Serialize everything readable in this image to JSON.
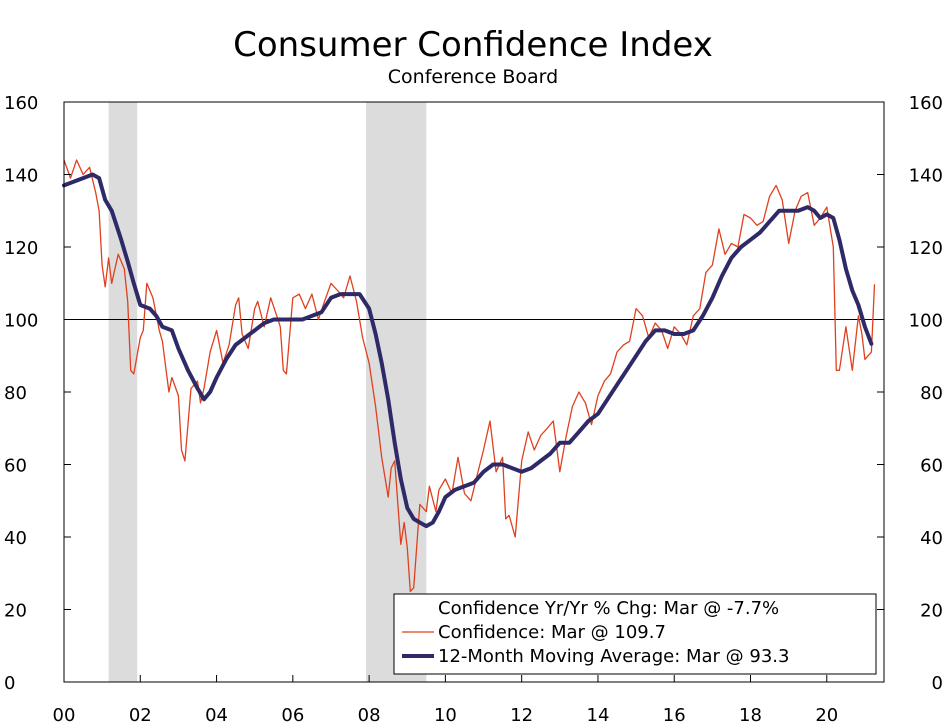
{
  "chart_data": {
    "type": "line",
    "title": "Consumer Confidence Index",
    "subtitle": "Conference Board",
    "xlim": [
      2000,
      2021.5
    ],
    "ylim": [
      0,
      160
    ],
    "y_ticks": [
      0,
      20,
      40,
      60,
      80,
      100,
      120,
      140,
      160
    ],
    "y_tick_labels": [
      "0",
      "20",
      "40",
      "60",
      "80",
      "100",
      "120",
      "140",
      "160"
    ],
    "x_ticks": [
      2000,
      2002,
      2004,
      2006,
      2008,
      2010,
      2012,
      2014,
      2016,
      2018,
      2020
    ],
    "x_tick_labels": [
      "00",
      "02",
      "04",
      "06",
      "08",
      "10",
      "12",
      "14",
      "16",
      "18",
      "20"
    ],
    "reference_line": 100,
    "recessions": [
      [
        2001.17,
        2001.92
      ],
      [
        2007.92,
        2009.5
      ]
    ],
    "colors": {
      "confidence": "#e0401e",
      "moving_average": "#2e2a68",
      "recession": "#dcdcdc"
    },
    "legend": [
      {
        "key": "yoy",
        "label": "Confidence Yr/Yr % Chg: Mar @ -7.7%"
      },
      {
        "key": "confidence",
        "label": "Confidence: Mar @ 109.7"
      },
      {
        "key": "moving_average",
        "label": "12-Month Moving Average: Mar @ 93.3"
      }
    ],
    "series": [
      {
        "name": "Confidence",
        "points": [
          [
            2000.0,
            144
          ],
          [
            2000.17,
            139
          ],
          [
            2000.33,
            144
          ],
          [
            2000.5,
            140
          ],
          [
            2000.67,
            142
          ],
          [
            2000.83,
            135
          ],
          [
            2000.92,
            130
          ],
          [
            2001.0,
            115
          ],
          [
            2001.08,
            109
          ],
          [
            2001.17,
            117
          ],
          [
            2001.25,
            110
          ],
          [
            2001.42,
            118
          ],
          [
            2001.58,
            114
          ],
          [
            2001.67,
            105
          ],
          [
            2001.75,
            86
          ],
          [
            2001.83,
            85
          ],
          [
            2002.0,
            95
          ],
          [
            2002.08,
            97
          ],
          [
            2002.17,
            110
          ],
          [
            2002.33,
            106
          ],
          [
            2002.5,
            97
          ],
          [
            2002.58,
            94
          ],
          [
            2002.75,
            80
          ],
          [
            2002.83,
            84
          ],
          [
            2003.0,
            79
          ],
          [
            2003.08,
            64
          ],
          [
            2003.17,
            61
          ],
          [
            2003.33,
            81
          ],
          [
            2003.5,
            83
          ],
          [
            2003.58,
            77
          ],
          [
            2003.67,
            81
          ],
          [
            2003.83,
            91
          ],
          [
            2004.0,
            97
          ],
          [
            2004.17,
            88
          ],
          [
            2004.33,
            93
          ],
          [
            2004.5,
            104
          ],
          [
            2004.58,
            106
          ],
          [
            2004.67,
            96
          ],
          [
            2004.83,
            92
          ],
          [
            2005.0,
            103
          ],
          [
            2005.08,
            105
          ],
          [
            2005.25,
            98
          ],
          [
            2005.42,
            106
          ],
          [
            2005.58,
            101
          ],
          [
            2005.67,
            98
          ],
          [
            2005.75,
            86
          ],
          [
            2005.83,
            85
          ],
          [
            2006.0,
            106
          ],
          [
            2006.17,
            107
          ],
          [
            2006.33,
            103
          ],
          [
            2006.5,
            107
          ],
          [
            2006.67,
            100
          ],
          [
            2006.83,
            105
          ],
          [
            2007.0,
            110
          ],
          [
            2007.17,
            108
          ],
          [
            2007.33,
            106
          ],
          [
            2007.5,
            112
          ],
          [
            2007.67,
            105
          ],
          [
            2007.83,
            95
          ],
          [
            2008.0,
            88
          ],
          [
            2008.17,
            76
          ],
          [
            2008.33,
            62
          ],
          [
            2008.5,
            51
          ],
          [
            2008.58,
            59
          ],
          [
            2008.67,
            61
          ],
          [
            2008.83,
            38
          ],
          [
            2008.92,
            44
          ],
          [
            2009.0,
            37
          ],
          [
            2009.08,
            25
          ],
          [
            2009.17,
            26
          ],
          [
            2009.33,
            49
          ],
          [
            2009.5,
            47
          ],
          [
            2009.58,
            54
          ],
          [
            2009.75,
            47
          ],
          [
            2009.83,
            53
          ],
          [
            2010.0,
            56
          ],
          [
            2010.17,
            52
          ],
          [
            2010.33,
            62
          ],
          [
            2010.5,
            52
          ],
          [
            2010.67,
            50
          ],
          [
            2010.83,
            57
          ],
          [
            2011.0,
            64
          ],
          [
            2011.17,
            72
          ],
          [
            2011.33,
            58
          ],
          [
            2011.5,
            62
          ],
          [
            2011.58,
            45
          ],
          [
            2011.67,
            46
          ],
          [
            2011.83,
            40
          ],
          [
            2012.0,
            61
          ],
          [
            2012.17,
            69
          ],
          [
            2012.33,
            64
          ],
          [
            2012.5,
            68
          ],
          [
            2012.67,
            70
          ],
          [
            2012.83,
            72
          ],
          [
            2013.0,
            58
          ],
          [
            2013.17,
            68
          ],
          [
            2013.33,
            76
          ],
          [
            2013.5,
            80
          ],
          [
            2013.67,
            77
          ],
          [
            2013.83,
            71
          ],
          [
            2014.0,
            79
          ],
          [
            2014.17,
            83
          ],
          [
            2014.33,
            85
          ],
          [
            2014.5,
            91
          ],
          [
            2014.67,
            93
          ],
          [
            2014.83,
            94
          ],
          [
            2015.0,
            103
          ],
          [
            2015.17,
            101
          ],
          [
            2015.33,
            95
          ],
          [
            2015.5,
            99
          ],
          [
            2015.67,
            97
          ],
          [
            2015.83,
            92
          ],
          [
            2016.0,
            98
          ],
          [
            2016.17,
            96
          ],
          [
            2016.33,
            93
          ],
          [
            2016.5,
            101
          ],
          [
            2016.67,
            103
          ],
          [
            2016.83,
            113
          ],
          [
            2017.0,
            115
          ],
          [
            2017.17,
            125
          ],
          [
            2017.33,
            118
          ],
          [
            2017.5,
            121
          ],
          [
            2017.67,
            120
          ],
          [
            2017.83,
            129
          ],
          [
            2018.0,
            128
          ],
          [
            2018.17,
            126
          ],
          [
            2018.33,
            127
          ],
          [
            2018.5,
            134
          ],
          [
            2018.67,
            137
          ],
          [
            2018.83,
            133
          ],
          [
            2019.0,
            121
          ],
          [
            2019.17,
            130
          ],
          [
            2019.33,
            134
          ],
          [
            2019.5,
            135
          ],
          [
            2019.67,
            126
          ],
          [
            2019.83,
            128
          ],
          [
            2020.0,
            131
          ],
          [
            2020.17,
            120
          ],
          [
            2020.25,
            86
          ],
          [
            2020.33,
            86
          ],
          [
            2020.5,
            98
          ],
          [
            2020.67,
            86
          ],
          [
            2020.83,
            101
          ],
          [
            2020.92,
            96
          ],
          [
            2021.0,
            89
          ],
          [
            2021.08,
            90
          ],
          [
            2021.17,
            91
          ],
          [
            2021.25,
            109.7
          ]
        ]
      },
      {
        "name": "12-Month Moving Average",
        "points": [
          [
            2000.0,
            137
          ],
          [
            2000.25,
            138
          ],
          [
            2000.5,
            139
          ],
          [
            2000.75,
            140
          ],
          [
            2000.92,
            139
          ],
          [
            2001.08,
            133
          ],
          [
            2001.25,
            130
          ],
          [
            2001.5,
            122
          ],
          [
            2001.67,
            116
          ],
          [
            2001.83,
            110
          ],
          [
            2002.0,
            104
          ],
          [
            2002.25,
            103
          ],
          [
            2002.42,
            101
          ],
          [
            2002.58,
            98
          ],
          [
            2002.83,
            97
          ],
          [
            2003.0,
            92
          ],
          [
            2003.25,
            86
          ],
          [
            2003.5,
            81
          ],
          [
            2003.67,
            78
          ],
          [
            2003.83,
            80
          ],
          [
            2004.0,
            84
          ],
          [
            2004.25,
            89
          ],
          [
            2004.5,
            93
          ],
          [
            2004.75,
            95
          ],
          [
            2005.0,
            97
          ],
          [
            2005.25,
            99
          ],
          [
            2005.5,
            100
          ],
          [
            2005.67,
            100
          ],
          [
            2005.83,
            100
          ],
          [
            2006.0,
            100
          ],
          [
            2006.25,
            100
          ],
          [
            2006.5,
            101
          ],
          [
            2006.75,
            102
          ],
          [
            2007.0,
            106
          ],
          [
            2007.25,
            107
          ],
          [
            2007.5,
            107
          ],
          [
            2007.75,
            107
          ],
          [
            2008.0,
            103
          ],
          [
            2008.17,
            96
          ],
          [
            2008.33,
            88
          ],
          [
            2008.5,
            78
          ],
          [
            2008.67,
            66
          ],
          [
            2008.83,
            56
          ],
          [
            2009.0,
            48
          ],
          [
            2009.17,
            45
          ],
          [
            2009.33,
            44
          ],
          [
            2009.5,
            43
          ],
          [
            2009.67,
            44
          ],
          [
            2009.83,
            47
          ],
          [
            2010.0,
            51
          ],
          [
            2010.25,
            53
          ],
          [
            2010.5,
            54
          ],
          [
            2010.75,
            55
          ],
          [
            2011.0,
            58
          ],
          [
            2011.25,
            60
          ],
          [
            2011.5,
            60
          ],
          [
            2011.75,
            59
          ],
          [
            2012.0,
            58
          ],
          [
            2012.25,
            59
          ],
          [
            2012.5,
            61
          ],
          [
            2012.75,
            63
          ],
          [
            2013.0,
            66
          ],
          [
            2013.25,
            66
          ],
          [
            2013.5,
            69
          ],
          [
            2013.75,
            72
          ],
          [
            2014.0,
            74
          ],
          [
            2014.25,
            78
          ],
          [
            2014.5,
            82
          ],
          [
            2014.75,
            86
          ],
          [
            2015.0,
            90
          ],
          [
            2015.25,
            94
          ],
          [
            2015.5,
            97
          ],
          [
            2015.75,
            97
          ],
          [
            2016.0,
            96
          ],
          [
            2016.25,
            96
          ],
          [
            2016.5,
            97
          ],
          [
            2016.75,
            101
          ],
          [
            2017.0,
            106
          ],
          [
            2017.25,
            112
          ],
          [
            2017.5,
            117
          ],
          [
            2017.75,
            120
          ],
          [
            2018.0,
            122
          ],
          [
            2018.25,
            124
          ],
          [
            2018.5,
            127
          ],
          [
            2018.75,
            130
          ],
          [
            2019.0,
            130
          ],
          [
            2019.25,
            130
          ],
          [
            2019.5,
            131
          ],
          [
            2019.67,
            130
          ],
          [
            2019.83,
            128
          ],
          [
            2020.0,
            129
          ],
          [
            2020.17,
            128
          ],
          [
            2020.33,
            122
          ],
          [
            2020.5,
            114
          ],
          [
            2020.67,
            108
          ],
          [
            2020.83,
            104
          ],
          [
            2021.0,
            98
          ],
          [
            2021.17,
            93.3
          ]
        ]
      }
    ]
  }
}
